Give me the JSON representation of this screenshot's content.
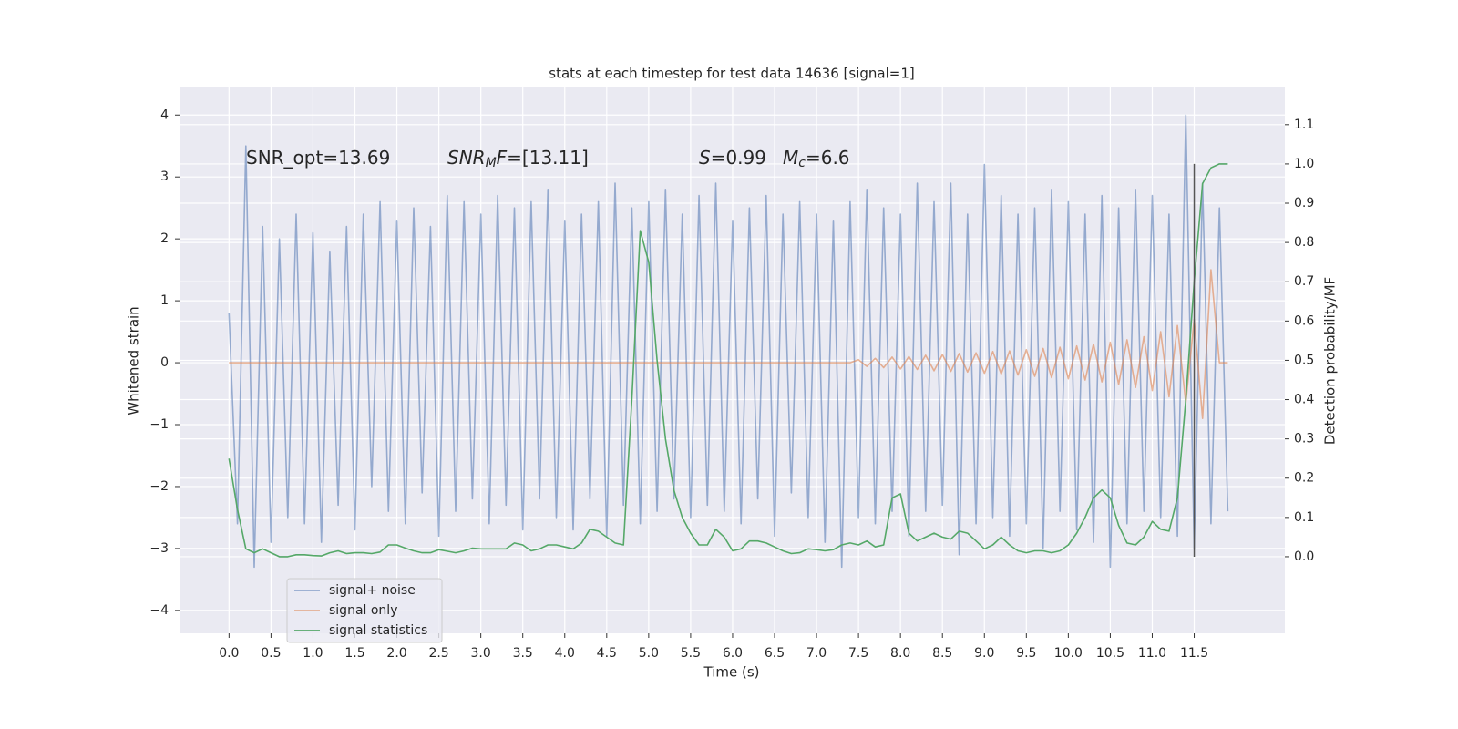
{
  "chart_data": {
    "type": "line",
    "title": "stats at each timestep for test data 14636 [signal=1]",
    "xlabel": "Time (s)",
    "ylabel": "Whitened strain",
    "y2label": "Detection probability/MF",
    "xlim": [
      -0.59,
      12.58
    ],
    "ylim": [
      -4.37,
      4.46
    ],
    "y2lim": [
      -0.195,
      1.197
    ],
    "xticks": [
      {
        "value": 0,
        "label": "0.0"
      },
      0.5,
      {
        "value": 1,
        "label": "1.0"
      },
      1.5,
      {
        "value": 2,
        "label": "2.0"
      },
      2.5,
      {
        "value": 3,
        "label": "3.0"
      },
      3.5,
      {
        "value": 4,
        "label": "4.0"
      },
      4.5,
      {
        "value": 5,
        "label": "5.0"
      },
      5.5,
      {
        "value": 6,
        "label": "6.0"
      },
      6.5,
      {
        "value": 7,
        "label": "7.0"
      },
      7.5,
      {
        "value": 8,
        "label": "8.0"
      },
      8.5,
      {
        "value": 9,
        "label": "9.0"
      },
      9.5,
      {
        "value": 10,
        "label": "10.0"
      },
      10.5,
      {
        "value": 11,
        "label": "11.0"
      },
      11.5
    ],
    "yticks": [
      {
        "value": -4,
        "label": "−4"
      },
      {
        "value": -3,
        "label": "−3"
      },
      {
        "value": -2,
        "label": "−2"
      },
      {
        "value": -1,
        "label": "−1"
      },
      0,
      1,
      2,
      3,
      4
    ],
    "y2ticks": [
      {
        "value": 0,
        "label": "0.0"
      },
      0.1,
      0.2,
      0.3,
      0.4,
      0.5,
      0.6,
      0.7,
      0.8,
      0.9,
      {
        "value": 1,
        "label": "1.0"
      },
      1.1
    ],
    "grid": true,
    "legend": "lower left",
    "x": [
      0.0,
      0.1,
      0.2,
      0.3,
      0.4,
      0.5,
      0.6,
      0.7,
      0.8,
      0.9,
      1.0,
      1.1,
      1.2,
      1.3,
      1.4,
      1.5,
      1.6,
      1.7,
      1.8,
      1.9,
      2.0,
      2.1,
      2.2,
      2.3,
      2.4,
      2.5,
      2.6,
      2.7,
      2.8,
      2.9,
      3.0,
      3.1,
      3.2,
      3.3,
      3.4,
      3.5,
      3.6,
      3.7,
      3.8,
      3.9,
      4.0,
      4.1,
      4.2,
      4.3,
      4.4,
      4.5,
      4.6,
      4.7,
      4.8,
      4.9,
      5.0,
      5.1,
      5.2,
      5.3,
      5.4,
      5.5,
      5.6,
      5.7,
      5.8,
      5.9,
      6.0,
      6.1,
      6.2,
      6.3,
      6.4,
      6.5,
      6.6,
      6.7,
      6.8,
      6.9,
      7.0,
      7.1,
      7.2,
      7.3,
      7.4,
      7.5,
      7.6,
      7.7,
      7.8,
      7.9,
      8.0,
      8.1,
      8.2,
      8.3,
      8.4,
      8.5,
      8.6,
      8.7,
      8.8,
      8.9,
      9.0,
      9.1,
      9.2,
      9.3,
      9.4,
      9.5,
      9.6,
      9.7,
      9.8,
      9.9,
      10.0,
      10.1,
      10.2,
      10.3,
      10.4,
      10.5,
      10.6,
      10.7,
      10.8,
      10.9,
      11.0,
      11.1,
      11.2,
      11.3,
      11.4,
      11.5,
      11.6,
      11.7,
      11.8,
      11.9
    ],
    "series": [
      {
        "name": "signal+ noise",
        "color": "#4c72b0",
        "alpha": 0.55,
        "axis": "y",
        "values": [
          0.8,
          -2.6,
          3.5,
          -3.3,
          2.2,
          -2.9,
          2.0,
          -2.5,
          2.4,
          -2.6,
          2.1,
          -2.9,
          1.8,
          -2.3,
          2.2,
          -2.7,
          2.4,
          -2.0,
          2.6,
          -2.4,
          2.3,
          -2.6,
          2.5,
          -2.1,
          2.2,
          -2.8,
          2.7,
          -2.4,
          2.6,
          -2.2,
          2.4,
          -2.6,
          2.7,
          -2.3,
          2.5,
          -2.7,
          2.6,
          -2.2,
          2.8,
          -2.5,
          2.3,
          -2.7,
          2.4,
          -2.2,
          2.6,
          -2.8,
          2.9,
          -2.3,
          2.5,
          -2.6,
          2.6,
          -2.4,
          2.8,
          -2.2,
          2.4,
          -2.5,
          2.7,
          -2.3,
          2.9,
          -2.4,
          2.3,
          -2.6,
          2.5,
          -2.2,
          2.7,
          -2.8,
          2.4,
          -2.1,
          2.6,
          -2.5,
          2.4,
          -2.9,
          2.3,
          -3.3,
          2.6,
          -2.5,
          2.8,
          -2.6,
          2.5,
          -2.4,
          2.4,
          -2.8,
          2.9,
          -2.4,
          2.6,
          -2.3,
          2.9,
          -3.1,
          2.4,
          -2.6,
          3.2,
          -2.5,
          2.7,
          -2.8,
          2.4,
          -2.6,
          2.5,
          -3.0,
          2.8,
          -2.4,
          2.6,
          -2.7,
          2.4,
          -2.9,
          2.7,
          -3.3,
          2.5,
          -2.6,
          2.8,
          -2.4,
          2.7,
          -2.5,
          2.4,
          -2.8,
          4.0,
          -3.0,
          2.9,
          -2.6,
          2.5,
          -2.4
        ]
      },
      {
        "name": "signal only",
        "color": "#dd8452",
        "alpha": 0.6,
        "axis": "y",
        "values": [
          0,
          0,
          0,
          0,
          0,
          0,
          0,
          0,
          0,
          0,
          0,
          0,
          0,
          0,
          0,
          0,
          0,
          0,
          0,
          0,
          0,
          0,
          0,
          0,
          0,
          0,
          0,
          0,
          0,
          0,
          0,
          0,
          0,
          0,
          0,
          0,
          0,
          0,
          0,
          0,
          0,
          0,
          0,
          0,
          0,
          0,
          0,
          0,
          0,
          0,
          0,
          0,
          0,
          0,
          0,
          0,
          0,
          0,
          0,
          0,
          0,
          0,
          0,
          0,
          0,
          0,
          0,
          0,
          0,
          0,
          0,
          0,
          0,
          0,
          0,
          0.05,
          -0.06,
          0.07,
          -0.08,
          0.09,
          -0.1,
          0.1,
          -0.11,
          0.12,
          -0.13,
          0.13,
          -0.14,
          0.15,
          -0.15,
          0.16,
          -0.17,
          0.18,
          -0.18,
          0.19,
          -0.2,
          0.21,
          -0.22,
          0.23,
          -0.24,
          0.25,
          -0.26,
          0.27,
          -0.28,
          0.3,
          -0.31,
          0.33,
          -0.35,
          0.37,
          -0.4,
          0.42,
          -0.45,
          0.5,
          -0.55,
          0.6,
          -0.65,
          0.7,
          -0.9,
          1.5,
          0,
          0
        ]
      },
      {
        "name": "signal statistics",
        "color": "#55a868",
        "alpha": 1,
        "axis": "y2",
        "values": [
          0.25,
          0.12,
          0.02,
          0.01,
          0.02,
          0.01,
          0.0,
          0.0,
          0.005,
          0.005,
          0.003,
          0.002,
          0.01,
          0.015,
          0.008,
          0.01,
          0.01,
          0.008,
          0.012,
          0.03,
          0.03,
          0.022,
          0.015,
          0.01,
          0.01,
          0.018,
          0.014,
          0.01,
          0.015,
          0.022,
          0.02,
          0.02,
          0.02,
          0.02,
          0.035,
          0.03,
          0.015,
          0.02,
          0.03,
          0.03,
          0.025,
          0.02,
          0.035,
          0.07,
          0.065,
          0.05,
          0.035,
          0.03,
          0.4,
          0.83,
          0.75,
          0.5,
          0.3,
          0.17,
          0.1,
          0.06,
          0.03,
          0.03,
          0.07,
          0.05,
          0.015,
          0.02,
          0.04,
          0.04,
          0.035,
          0.025,
          0.015,
          0.008,
          0.01,
          0.02,
          0.018,
          0.015,
          0.018,
          0.03,
          0.035,
          0.03,
          0.04,
          0.025,
          0.03,
          0.15,
          0.16,
          0.06,
          0.04,
          0.05,
          0.06,
          0.05,
          0.045,
          0.065,
          0.06,
          0.04,
          0.02,
          0.03,
          0.05,
          0.03,
          0.015,
          0.01,
          0.015,
          0.015,
          0.01,
          0.015,
          0.03,
          0.06,
          0.1,
          0.15,
          0.17,
          0.15,
          0.08,
          0.035,
          0.03,
          0.05,
          0.09,
          0.07,
          0.065,
          0.15,
          0.4,
          0.7,
          0.95,
          0.99,
          1.0,
          1.0
        ]
      }
    ],
    "vline": {
      "x": 11.5,
      "ymin": 0,
      "ymax": 1.0,
      "axis": "y2",
      "color": "#555555"
    },
    "annotations": [
      [
        {
          "text": "SNR_opt=13.69"
        }
      ],
      [
        {
          "text": "SNR",
          "style": "italic"
        },
        {
          "text": "M",
          "style": "italic-sub"
        },
        {
          "text": "F",
          "style": "italic"
        },
        {
          "text": "=[13.11]"
        }
      ],
      [
        {
          "text": "S",
          "style": "italic"
        },
        {
          "text": "=0.99"
        }
      ],
      [
        {
          "text": "M",
          "style": "italic"
        },
        {
          "text": "c",
          "style": "italic-sub"
        },
        {
          "text": "=6.6"
        }
      ]
    ]
  }
}
